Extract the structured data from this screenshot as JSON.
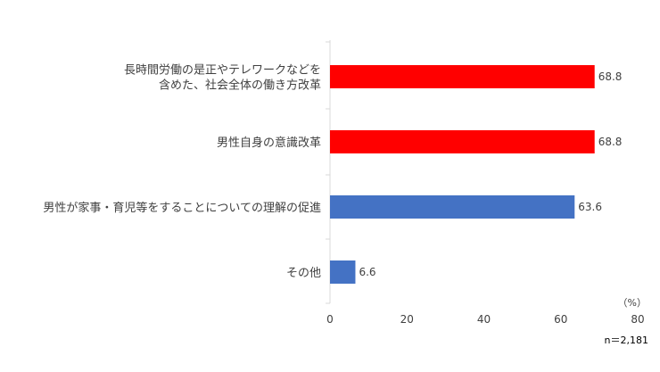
{
  "chart_data": {
    "type": "bar",
    "orientation": "horizontal",
    "categories": [
      [
        "長時間労働の是正やテレワークなどを",
        "含めた、社会全体の働き方改革"
      ],
      [
        "男性自身の意識改革"
      ],
      [
        "男性が家事・育児等をすることについての理解の促進"
      ],
      [
        "その他"
      ]
    ],
    "values": [
      68.8,
      68.8,
      63.6,
      6.6
    ],
    "value_labels": [
      "68.8",
      "68.8",
      "63.6",
      "6.6"
    ],
    "bar_colors": [
      "#ff0000",
      "#ff0000",
      "#4472c4",
      "#4472c4"
    ],
    "xlim": [
      0,
      80
    ],
    "xticks": [
      "0",
      "20",
      "40",
      "60",
      "80"
    ],
    "unit_label": "（%）",
    "sample_note": "n＝2,181",
    "grid": false
  }
}
